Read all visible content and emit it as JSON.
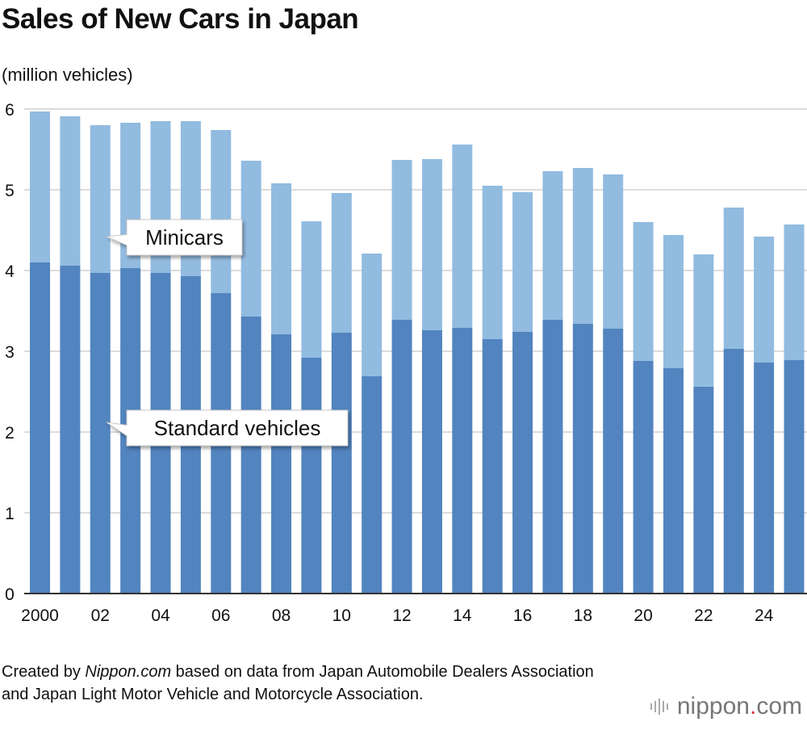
{
  "title": "Sales of New Cars in Japan",
  "unit_label": "(million vehicles)",
  "source": {
    "prefix": "Created by ",
    "site": "Nippon.com",
    "rest": " based on data from Japan Automobile Dealers Association and Japan Light Motor Vehicle and Motorcycle Association."
  },
  "logo": {
    "name": "nippon",
    "dot": ".",
    "tld": "com"
  },
  "colors": {
    "standard": "#5284bf",
    "minicars": "#92bbe0",
    "grid": "#d0d0d0",
    "axis": "#333333"
  },
  "chart_data": {
    "type": "bar",
    "stacked": true,
    "title": "Sales of New Cars in Japan",
    "ylabel": "(million vehicles)",
    "ylim": [
      0,
      6
    ],
    "yticks": [
      0,
      1,
      2,
      3,
      4,
      5,
      6
    ],
    "grid": true,
    "categories": [
      "2000",
      "01",
      "02",
      "03",
      "04",
      "05",
      "06",
      "07",
      "08",
      "09",
      "10",
      "11",
      "12",
      "13",
      "14",
      "15",
      "16",
      "17",
      "18",
      "19",
      "20",
      "21",
      "22",
      "23",
      "24",
      "25"
    ],
    "x_tick_labels": [
      "2000",
      "",
      "02",
      "",
      "04",
      "",
      "06",
      "",
      "08",
      "",
      "10",
      "",
      "12",
      "",
      "14",
      "",
      "16",
      "",
      "18",
      "",
      "20",
      "",
      "22",
      "",
      "24",
      ""
    ],
    "series": [
      {
        "name": "Standard vehicles",
        "values": [
          4.1,
          4.06,
          3.97,
          4.03,
          3.97,
          3.93,
          3.72,
          3.43,
          3.21,
          2.92,
          3.23,
          2.69,
          3.39,
          3.26,
          3.29,
          3.15,
          3.24,
          3.39,
          3.34,
          3.28,
          2.88,
          2.79,
          2.56,
          3.03,
          2.86,
          2.89
        ]
      },
      {
        "name": "Minicars",
        "values": [
          1.87,
          1.85,
          1.83,
          1.8,
          1.88,
          1.92,
          2.02,
          1.93,
          1.87,
          1.69,
          1.73,
          1.52,
          1.98,
          2.12,
          2.27,
          1.9,
          1.73,
          1.84,
          1.93,
          1.91,
          1.72,
          1.65,
          1.64,
          1.75,
          1.56,
          1.68
        ]
      }
    ]
  }
}
